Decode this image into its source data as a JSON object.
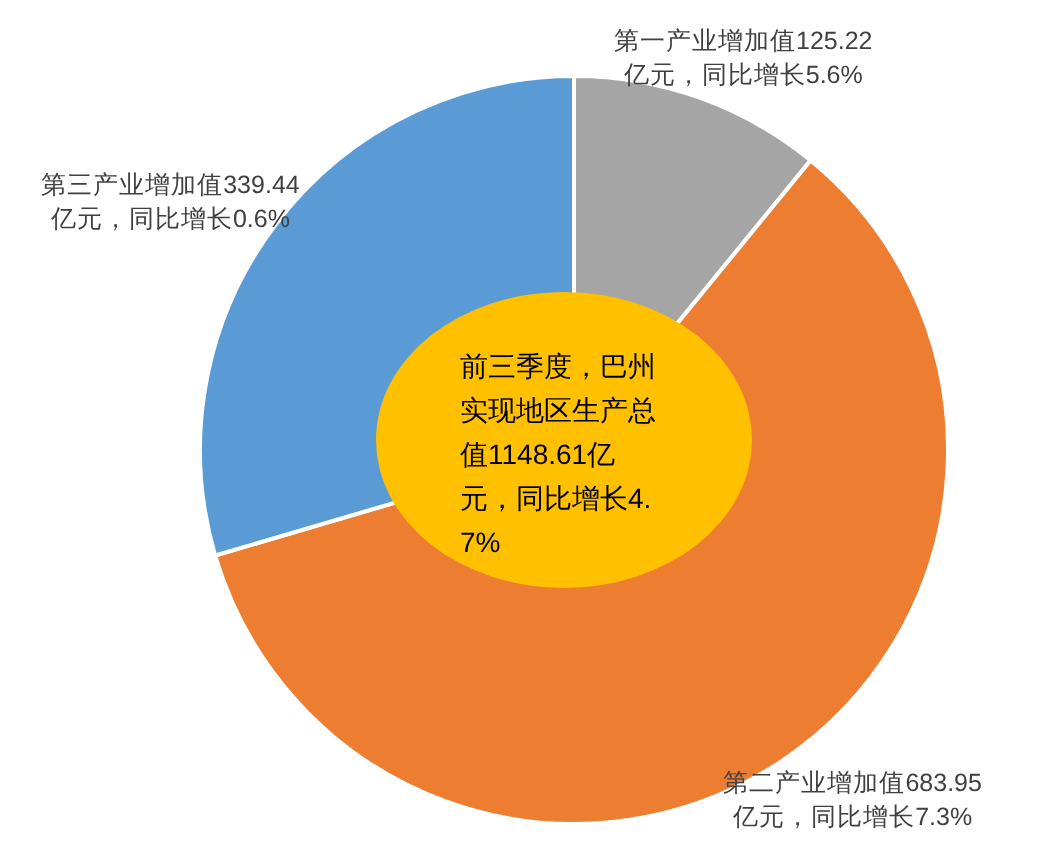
{
  "chart_data": {
    "type": "donut",
    "categories": [
      "第一产业增加值",
      "第二产业增加值",
      "第三产业增加值"
    ],
    "values": [
      125.22,
      683.95,
      339.44
    ],
    "colors": [
      "#a5a5a5",
      "#ed7d31",
      "#5b9bd5"
    ],
    "value_labels": [
      "125.22\n亿元，同比增长5.6%",
      "683.95\n亿元，同比增长7.3%",
      "339.44\n亿元，同比增长0.6%"
    ],
    "annotations": [
      "前三季度，巴州实现地区生产总值1148.61亿元，同比增长4.7%"
    ]
  }
}
